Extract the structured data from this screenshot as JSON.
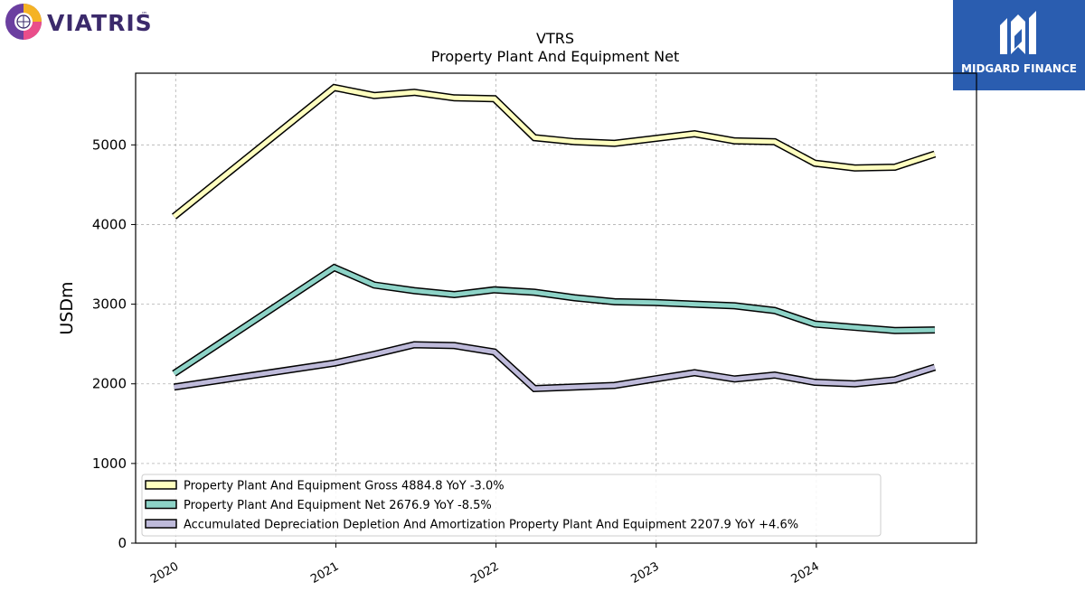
{
  "branding": {
    "left_logo_text": "VIATRIS",
    "left_logo_tm": "™",
    "right_logo_text": "MIDGARD FINANCE",
    "right_logo_color": "#2a5db0"
  },
  "chart_data": {
    "type": "line",
    "title": "VTRS",
    "subtitle": "Property Plant And Equipment Net",
    "xlabel": "",
    "ylabel": "USDm",
    "ylim": [
      0,
      5900
    ],
    "xlim": [
      2019.75,
      2025.0
    ],
    "yticks": [
      0,
      1000,
      2000,
      3000,
      4000,
      5000
    ],
    "xticks": [
      2020,
      2021,
      2022,
      2023,
      2024
    ],
    "grid": true,
    "legend_position": "lower-left",
    "series": [
      {
        "name": "Property Plant And Equipment Gross",
        "legend": "Property Plant And Equipment Gross  4884.8 YoY -3.0%",
        "color": "#ffffbf",
        "x": [
          2019.99,
          2020.99,
          2021.24,
          2021.49,
          2021.74,
          2021.99,
          2022.24,
          2022.49,
          2022.74,
          2022.99,
          2023.24,
          2023.49,
          2023.74,
          2023.99,
          2024.24,
          2024.49,
          2024.74
        ],
        "values": [
          4100,
          5720,
          5620,
          5660,
          5590,
          5580,
          5090,
          5040,
          5020,
          5080,
          5140,
          5050,
          5040,
          4770,
          4710,
          4720,
          4885
        ]
      },
      {
        "name": "Property Plant And Equipment Net",
        "legend": "Property Plant And Equipment Net  2676.9 YoY -8.5%",
        "color": "#8dd3c7",
        "x": [
          2019.99,
          2020.99,
          2021.24,
          2021.49,
          2021.74,
          2021.99,
          2022.24,
          2022.49,
          2022.74,
          2022.99,
          2023.24,
          2023.49,
          2023.74,
          2023.99,
          2024.24,
          2024.49,
          2024.74
        ],
        "values": [
          2130,
          3460,
          3240,
          3170,
          3120,
          3180,
          3150,
          3080,
          3030,
          3020,
          3000,
          2980,
          2920,
          2750,
          2710,
          2670,
          2677
        ]
      },
      {
        "name": "Accumulated Depreciation Depletion And Amortization Property Plant And Equipment",
        "legend": "Accumulated Depreciation Depletion And Amortization Property Plant And Equipment  2207.9 YoY +4.6%",
        "color": "#bebada",
        "x": [
          2019.99,
          2020.99,
          2021.24,
          2021.49,
          2021.74,
          2021.99,
          2022.24,
          2022.49,
          2022.74,
          2022.99,
          2023.24,
          2023.49,
          2023.74,
          2023.99,
          2024.24,
          2024.49,
          2024.74
        ],
        "values": [
          1960,
          2260,
          2370,
          2490,
          2480,
          2400,
          1940,
          1960,
          1980,
          2060,
          2140,
          2060,
          2110,
          2020,
          2000,
          2050,
          2208
        ]
      }
    ]
  }
}
